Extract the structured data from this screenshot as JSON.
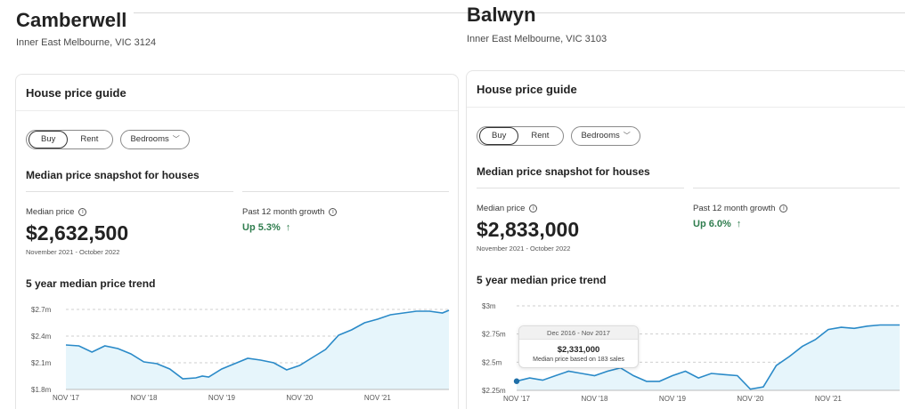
{
  "listings": [
    {
      "suburb": "Camberwell",
      "region": "Inner East Melbourne, VIC 3124",
      "card_title": "House price guide",
      "toggle": {
        "buy": "Buy",
        "rent": "Rent",
        "active": "Buy"
      },
      "bedrooms_label": "Bedrooms",
      "snapshot_title": "Median price snapshot for houses",
      "median_label": "Median price",
      "median_value": "$2,632,500",
      "period": "November 2021 - October 2022",
      "growth_label": "Past 12 month growth",
      "growth_value": "Up 5.3%",
      "trend_title": "5 year median price trend",
      "chart_data": {
        "type": "area",
        "title": "",
        "xlabel": "",
        "ylabel": "",
        "y_ticks": [
          "$2.7m",
          "$2.4m",
          "$2.1m",
          "$1.8m"
        ],
        "y_tick_values": [
          2.7,
          2.4,
          2.1,
          1.8
        ],
        "x_ticks": [
          "NOV '17",
          "NOV '18",
          "NOV '19",
          "NOV '20",
          "NOV '21"
        ],
        "ylim": [
          1.8,
          2.7
        ],
        "x_range": [
          0,
          59
        ],
        "grid": "dashed horizontal",
        "color": "#2a8ac8",
        "fill": "#e6f5fb",
        "series": [
          {
            "x": [
              0,
              2,
              4,
              6,
              8,
              10,
              12,
              14,
              16,
              18,
              20,
              21,
              22,
              24,
              26,
              28,
              30,
              32,
              34,
              36,
              38,
              40,
              42,
              44,
              46,
              48,
              50,
              52,
              54,
              56,
              58,
              59
            ],
            "values": [
              2.3,
              2.29,
              2.22,
              2.29,
              2.26,
              2.2,
              2.11,
              2.09,
              2.03,
              1.92,
              1.93,
              1.95,
              1.94,
              2.03,
              2.09,
              2.15,
              2.13,
              2.1,
              2.02,
              2.07,
              2.16,
              2.25,
              2.41,
              2.47,
              2.55,
              2.59,
              2.64,
              2.66,
              2.68,
              2.68,
              2.66,
              2.69
            ]
          }
        ]
      }
    },
    {
      "suburb": "Balwyn",
      "region": "Inner East Melbourne, VIC 3103",
      "card_title": "House price guide",
      "toggle": {
        "buy": "Buy",
        "rent": "Rent",
        "active": "Buy"
      },
      "bedrooms_label": "Bedrooms",
      "snapshot_title": "Median price snapshot for houses",
      "median_label": "Median price",
      "median_value": "$2,833,000",
      "period": "November 2021 - October 2022",
      "growth_label": "Past 12 month growth",
      "growth_value": "Up 6.0%",
      "trend_title": "5 year median price trend",
      "tooltip": {
        "period": "Dec 2016 - Nov 2017",
        "price": "$2,331,000",
        "note": "Median price based on 183 sales"
      },
      "chart_data": {
        "type": "area",
        "title": "",
        "xlabel": "",
        "ylabel": "",
        "y_ticks": [
          "$3m",
          "$2.75m",
          "$2.5m",
          "$2.25m"
        ],
        "y_tick_values": [
          3.0,
          2.75,
          2.5,
          2.25
        ],
        "x_ticks": [
          "NOV '17",
          "NOV '18",
          "NOV '19",
          "NOV '20",
          "NOV '21"
        ],
        "ylim": [
          2.25,
          3.0
        ],
        "x_range": [
          0,
          59
        ],
        "grid": "dashed horizontal",
        "color": "#2a8ac8",
        "fill": "#e6f5fb",
        "highlight_index": 0,
        "series": [
          {
            "x": [
              0,
              2,
              4,
              6,
              8,
              10,
              12,
              14,
              16,
              18,
              20,
              22,
              24,
              26,
              28,
              30,
              32,
              34,
              36,
              38,
              40,
              42,
              44,
              46,
              48,
              50,
              52,
              54,
              56,
              58,
              59
            ],
            "values": [
              2.331,
              2.36,
              2.34,
              2.38,
              2.42,
              2.4,
              2.38,
              2.42,
              2.45,
              2.38,
              2.33,
              2.33,
              2.38,
              2.42,
              2.36,
              2.4,
              2.39,
              2.38,
              2.26,
              2.28,
              2.47,
              2.55,
              2.64,
              2.7,
              2.79,
              2.81,
              2.8,
              2.82,
              2.83,
              2.83,
              2.83
            ]
          }
        ]
      }
    }
  ]
}
